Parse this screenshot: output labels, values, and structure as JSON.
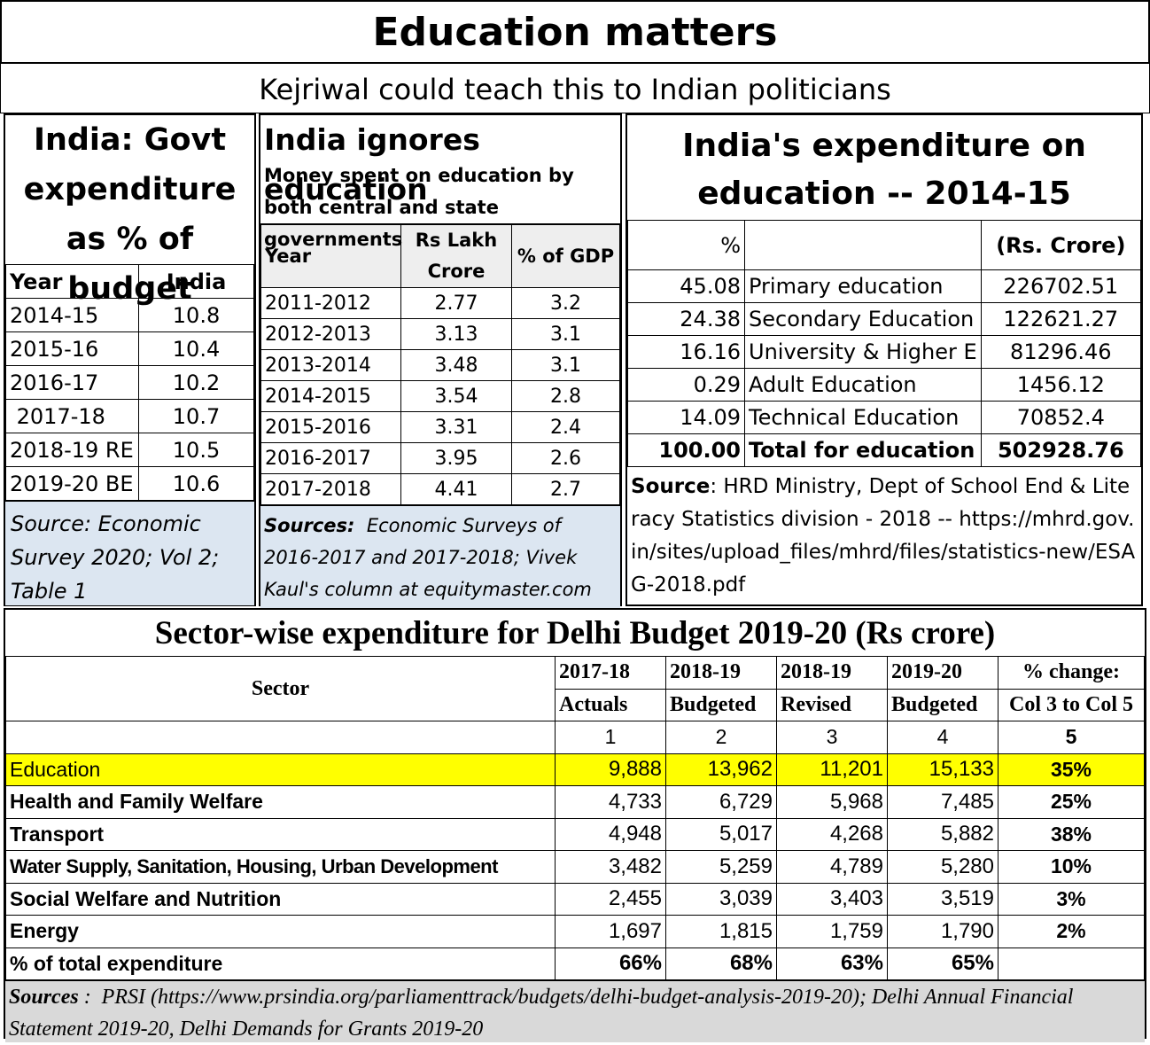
{
  "header": {
    "title": "Education matters",
    "subtitle": "Kejriwal could teach this to Indian politicians"
  },
  "panel1": {
    "title_lines": [
      "India: Govt",
      "expenditure",
      "as % of budget"
    ],
    "columns": [
      "Year",
      "India"
    ],
    "rows": [
      [
        "2014-15",
        "10.8"
      ],
      [
        "2015-16",
        "10.4"
      ],
      [
        "2016-17",
        "10.2"
      ],
      [
        " 2017-18",
        "10.7"
      ],
      [
        "2018-19 RE",
        "10.5"
      ],
      [
        "2019-20 BE",
        "10.6"
      ]
    ],
    "source": "Source: Economic Survey 2020; Vol 2; Table 1"
  },
  "panel2": {
    "title": "India ignores education",
    "subtitle": "Money spent on education by both central and state governments",
    "columns": [
      "Year",
      "Rs Lakh Crore",
      "% of GDP"
    ],
    "rows": [
      [
        "2011-2012",
        "2.77",
        "3.2"
      ],
      [
        "2012-2013",
        "3.13",
        "3.1"
      ],
      [
        "2013-2014",
        "3.48",
        "3.1"
      ],
      [
        "2014-2015",
        "3.54",
        "2.8"
      ],
      [
        "2015-2016",
        "3.31",
        "2.4"
      ],
      [
        "2016-2017",
        "3.95",
        "2.6"
      ],
      [
        "2017-2018",
        "4.41",
        "2.7"
      ]
    ],
    "source_label": "Sources:",
    "source_text": "Economic Surveys of 2016-2017 and 2017-2018; Vivek Kaul's column at equitymaster.com"
  },
  "panel3": {
    "title_lines": [
      "India's expenditure on",
      "education -- 2014-15"
    ],
    "columns": [
      "%",
      "",
      "(Rs. Crore)"
    ],
    "rows": [
      [
        "45.08",
        "Primary education",
        "226702.51"
      ],
      [
        "24.38",
        "Secondary Education",
        "122621.27"
      ],
      [
        "16.16",
        "University & Higher E",
        "81296.46"
      ],
      [
        "0.29",
        "Adult Education",
        "1456.12"
      ],
      [
        "14.09",
        "Technical Education",
        "70852.4"
      ]
    ],
    "total": [
      "100.00",
      "Total for education",
      "502928.76"
    ],
    "source_label": "Source",
    "source_text": ": HRD Ministry, Dept of School End & Literacy Statistics division - 2018 -- https://mhrd.gov.in/sites/upload_files/mhrd/files/statistics-new/ESAG-2018.pdf"
  },
  "panel4": {
    "title": "Sector-wise expenditure for Delhi Budget 2019-20 (Rs crore)",
    "sector_header": "Sector",
    "col_years": [
      "2017-18",
      "2018-19",
      "2018-19",
      "2019-20",
      "% change:"
    ],
    "col_types": [
      "Actuals",
      "Budgeted",
      "Revised",
      "Budgeted",
      "Col 3 to Col 5"
    ],
    "col_numbers": [
      "1",
      "2",
      "3",
      "4",
      "5"
    ],
    "rows": [
      {
        "sector": "Education",
        "values": [
          "9,888",
          "13,962",
          "11,201",
          "15,133"
        ],
        "change": "35%"
      },
      {
        "sector": "Health and Family Welfare",
        "values": [
          "4,733",
          "6,729",
          "5,968",
          "7,485"
        ],
        "change": "25%"
      },
      {
        "sector": "Transport",
        "values": [
          "4,948",
          "5,017",
          "4,268",
          "5,882"
        ],
        "change": "38%"
      },
      {
        "sector": "Water Supply, Sanitation, Housing, Urban Development",
        "values": [
          "3,482",
          "5,259",
          "4,789",
          "5,280"
        ],
        "change": "10%"
      },
      {
        "sector": "Social Welfare and Nutrition",
        "values": [
          "2,455",
          "3,039",
          "3,403",
          "3,519"
        ],
        "change": "3%"
      },
      {
        "sector": "Energy",
        "values": [
          "1,697",
          "1,815",
          "1,759",
          "1,790"
        ],
        "change": "2%"
      }
    ],
    "total_row": {
      "label": "% of total expenditure",
      "values": [
        "66%",
        "68%",
        "63%",
        "65%"
      ]
    },
    "highlight_color": "#ffff00",
    "source_label": "Sources",
    "source_text": " :  PRSI (https://www.prsindia.org/parliamenttrack/budgets/delhi-budget-analysis-2019-20); Delhi Annual Financial Statement 2019-20, Delhi Demands for Grants 2019-20"
  }
}
